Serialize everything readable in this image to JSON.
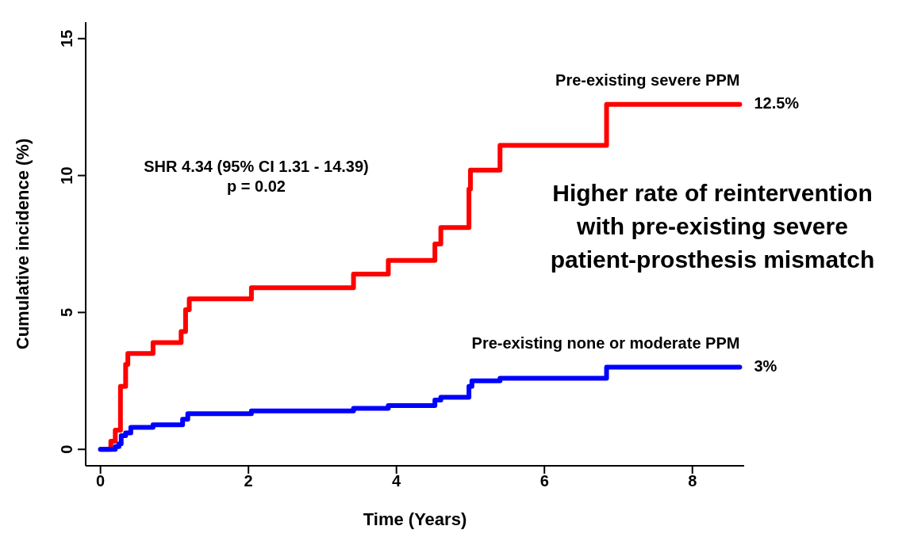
{
  "chart_data": {
    "type": "step",
    "xlabel": "Time (Years)",
    "ylabel": "Cumulative incidence (%)",
    "xlim": [
      -0.2,
      8.7
    ],
    "xticks": [
      0,
      2,
      4,
      6,
      8
    ],
    "ylim": [
      -0.6,
      15.6
    ],
    "yticks": [
      0,
      5,
      10,
      15
    ],
    "grid": false,
    "legend": false,
    "marker": "none",
    "line_style": "solid",
    "series": [
      {
        "name": "Pre-existing severe PPM",
        "color": "#ff0000",
        "x": [
          0,
          0.14,
          0.2,
          0.27,
          0.34,
          0.37,
          0.71,
          1.09,
          1.15,
          1.2,
          2.04,
          3.42,
          3.89,
          4.52,
          4.6,
          4.98,
          5.0,
          5.4,
          6.84,
          8.64
        ],
        "values": [
          0,
          0.3,
          0.7,
          2.3,
          3.1,
          3.5,
          3.9,
          4.3,
          5.1,
          5.5,
          5.9,
          6.4,
          6.9,
          7.5,
          8.1,
          9.5,
          10.2,
          11.1,
          12.6,
          12.6
        ]
      },
      {
        "name": "Pre-existing none or moderate PPM",
        "color": "#0000ff",
        "x": [
          0,
          0.14,
          0.2,
          0.25,
          0.28,
          0.34,
          0.41,
          0.71,
          1.11,
          1.18,
          2.04,
          3.42,
          3.89,
          4.52,
          4.6,
          4.98,
          5.02,
          5.4,
          6.84,
          8.64
        ],
        "values": [
          0,
          0,
          0.1,
          0.2,
          0.5,
          0.6,
          0.8,
          0.9,
          1.1,
          1.3,
          1.4,
          1.5,
          1.6,
          1.8,
          1.9,
          2.3,
          2.5,
          2.6,
          3.0,
          3.0
        ]
      }
    ],
    "annotations": [
      {
        "text": "12.5%",
        "x": 8.64,
        "y": 12.6
      },
      {
        "text": "3%",
        "x": 8.64,
        "y": 3.0
      },
      "SHR 4.34 (95% CI 1.31 - 14.39)\np = 0.02",
      "Higher rate of reintervention\nwith pre-existing severe\npatient-prosthesis mismatch"
    ]
  }
}
